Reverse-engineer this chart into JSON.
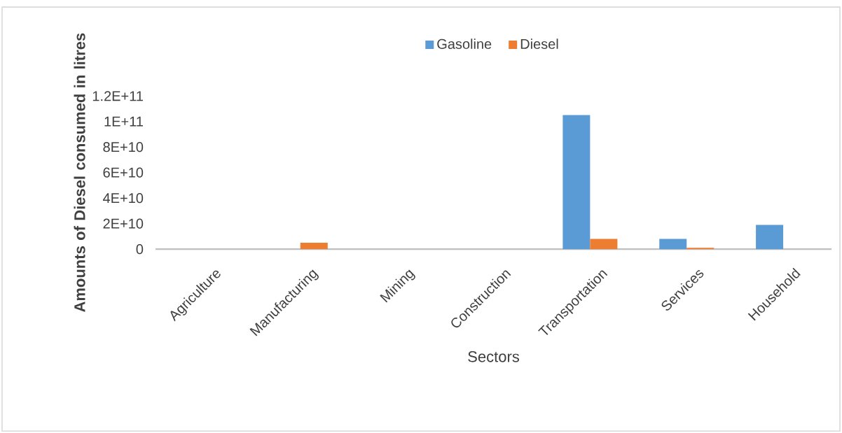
{
  "chart_data": {
    "type": "bar",
    "xlabel": "Sectors",
    "ylabel": "Amounts of Diesel consumed in litres",
    "categories": [
      "Agriculture",
      "Manufacturing",
      "Mining",
      "Construction",
      "Transportation",
      "Services",
      "Household"
    ],
    "series": [
      {
        "name": "Gasoline",
        "color": "#5b9bd5",
        "values": [
          0,
          0,
          0,
          0,
          105000000000,
          8000000000,
          19000000000
        ]
      },
      {
        "name": "Diesel",
        "color": "#ed7d31",
        "values": [
          0,
          5000000000,
          0,
          0,
          8000000000,
          1000000000,
          0
        ]
      }
    ],
    "ylim": [
      0,
      120000000000
    ],
    "yticks": [
      {
        "value": 0,
        "label": "0"
      },
      {
        "value": 20000000000,
        "label": "2E+10"
      },
      {
        "value": 40000000000,
        "label": "4E+10"
      },
      {
        "value": 60000000000,
        "label": "6E+10"
      },
      {
        "value": 80000000000,
        "label": "8E+10"
      },
      {
        "value": 100000000000,
        "label": "1E+11"
      },
      {
        "value": 120000000000,
        "label": "1.2E+11"
      }
    ],
    "legend": "top",
    "grid": false
  }
}
